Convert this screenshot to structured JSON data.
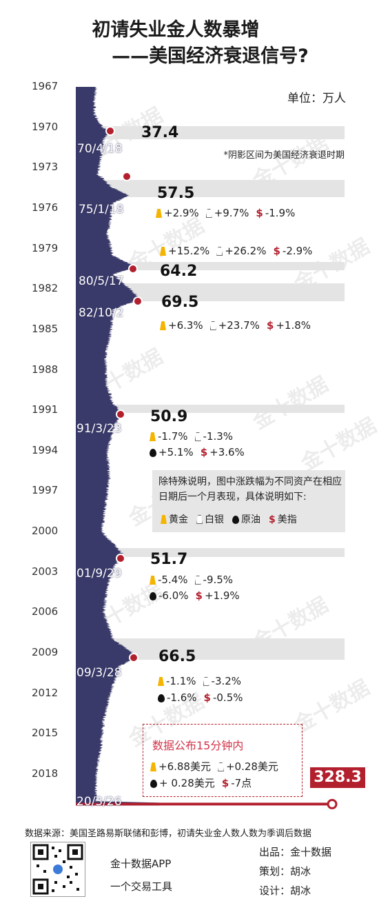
{
  "title_line1": "初请失业金人数暴增",
  "title_line2": "——美国经济衰退信号?",
  "unit_label": "单位：万人",
  "shade_note": "*阴影区间为美国经济衰退时期",
  "watermark": "金十数据",
  "colors": {
    "area": "#3a3a6a",
    "marker": "#b21f2d",
    "band": "#e4e4e4",
    "gold": "#f4b400",
    "usd": "#b21f2d"
  },
  "chart_data": {
    "type": "area",
    "orientation": "vertical",
    "y_axis": {
      "ticks": [
        "1967",
        "1970",
        "1973",
        "1976",
        "1979",
        "1982",
        "1985",
        "1988",
        "1991",
        "1994",
        "1997",
        "2000",
        "2003",
        "2006",
        "2009",
        "2012",
        "2015",
        "2018"
      ],
      "range": [
        1967,
        2020.2
      ]
    },
    "value_axis": {
      "unit": "万人"
    },
    "series": [
      {
        "values": [
          [
            1967.0,
            22
          ],
          [
            1968.0,
            20
          ],
          [
            1969.0,
            20
          ],
          [
            1970.0,
            29
          ],
          [
            1970.3,
            37.4
          ],
          [
            1970.8,
            30
          ],
          [
            1971.5,
            29
          ],
          [
            1972.5,
            26
          ],
          [
            1973.5,
            24
          ],
          [
            1974.5,
            40
          ],
          [
            1975.07,
            57.5
          ],
          [
            1975.6,
            40
          ],
          [
            1976.5,
            38
          ],
          [
            1978.0,
            34
          ],
          [
            1979.5,
            40
          ],
          [
            1980.38,
            64.2
          ],
          [
            1980.9,
            40
          ],
          [
            1981.8,
            55
          ],
          [
            1982.75,
            69.5
          ],
          [
            1983.5,
            40
          ],
          [
            1985.0,
            38
          ],
          [
            1987.0,
            32
          ],
          [
            1989.0,
            33
          ],
          [
            1990.5,
            40
          ],
          [
            1991.22,
            50.9
          ],
          [
            1992.0,
            42
          ],
          [
            1994.0,
            34
          ],
          [
            1996.0,
            36
          ],
          [
            1998.0,
            32
          ],
          [
            2000.0,
            28
          ],
          [
            2001.74,
            51.7
          ],
          [
            2002.5,
            42
          ],
          [
            2004.0,
            34
          ],
          [
            2006.0,
            30
          ],
          [
            2008.0,
            40
          ],
          [
            2009.24,
            66.5
          ],
          [
            2010.0,
            47
          ],
          [
            2012.0,
            37
          ],
          [
            2014.0,
            30
          ],
          [
            2016.0,
            27
          ],
          [
            2018.0,
            22
          ],
          [
            2020.0,
            21
          ],
          [
            2020.22,
            328.3
          ]
        ]
      }
    ],
    "annotations": [
      {
        "date_label": "70/4/18",
        "value": "37.4",
        "changes": []
      },
      {
        "date_label": "75/1/18",
        "value": "57.5",
        "changes": [
          {
            "icon": "gold",
            "text": "+2.9%"
          },
          {
            "icon": "silver",
            "text": "+9.7%"
          },
          {
            "icon": "usd",
            "text": "-1.9%"
          }
        ]
      },
      {
        "date_label": "",
        "value": "",
        "changes": [
          {
            "icon": "gold",
            "text": "+15.2%"
          },
          {
            "icon": "silver",
            "text": "+26.2%"
          },
          {
            "icon": "usd",
            "text": "-2.9%"
          }
        ]
      },
      {
        "date_label": "80/5/17",
        "value": "64.2",
        "changes": []
      },
      {
        "date_label": "82/10/2",
        "value": "69.5",
        "changes": [
          {
            "icon": "gold",
            "text": "+6.3%"
          },
          {
            "icon": "silver",
            "text": "+23.7%"
          },
          {
            "icon": "usd",
            "text": "+1.8%"
          }
        ]
      },
      {
        "date_label": "91/3/23",
        "value": "50.9",
        "changes": [
          {
            "icon": "gold",
            "text": "-1.7%"
          },
          {
            "icon": "silver",
            "text": "-1.3%"
          },
          {
            "icon": "oil",
            "text": "+5.1%"
          },
          {
            "icon": "usd",
            "text": "+3.6%"
          }
        ]
      },
      {
        "date_label": "01/9/29",
        "value": "51.7",
        "changes": [
          {
            "icon": "gold",
            "text": "-5.4%"
          },
          {
            "icon": "silver",
            "text": "-9.5%"
          },
          {
            "icon": "oil",
            "text": "-6.0%"
          },
          {
            "icon": "usd",
            "text": "+1.9%"
          }
        ]
      },
      {
        "date_label": "09/3/28",
        "value": "66.5",
        "changes": [
          {
            "icon": "gold",
            "text": "-1.1%"
          },
          {
            "icon": "silver",
            "text": "-3.2%"
          },
          {
            "icon": "oil",
            "text": "-1.6%"
          },
          {
            "icon": "usd",
            "text": "-0.5%"
          }
        ]
      },
      {
        "date_label": "20/3/26",
        "value": "328.3",
        "changes": [
          {
            "icon": "gold",
            "text": "+6.88美元"
          },
          {
            "icon": "silver",
            "text": "+0.28美元"
          },
          {
            "icon": "oil",
            "text": "+ 0.28美元"
          },
          {
            "icon": "usd",
            "text": "-7点"
          }
        ]
      }
    ],
    "recession_shading": [
      [
        1969.9,
        1970.9
      ],
      [
        1973.9,
        1975.2
      ],
      [
        1980.0,
        1980.6
      ],
      [
        1981.6,
        1982.9
      ],
      [
        1990.6,
        1991.2
      ],
      [
        2001.2,
        2001.9
      ],
      [
        2007.9,
        2009.5
      ]
    ]
  },
  "legend": {
    "description": "除特殊说明，图中涨跌幅为不同资产在相应日期后一个月表现，具体说明如下:",
    "items": [
      {
        "icon": "gold",
        "label": "黄金"
      },
      {
        "icon": "silver",
        "label": "白银"
      },
      {
        "icon": "oil",
        "label": "原油"
      },
      {
        "icon": "usd",
        "label": "美指"
      }
    ]
  },
  "pending_note": "数据公布15分钟内",
  "usd_symbol": "$",
  "footer": {
    "source": "数据来源：美国圣路易斯联储和彭博，初请失业金人数人数为季调后数据",
    "app_name": "金十数据APP",
    "app_slogan": "一个交易工具",
    "credits": [
      "出品：金十数据",
      "策划：胡冰",
      "设计：胡冰"
    ]
  }
}
